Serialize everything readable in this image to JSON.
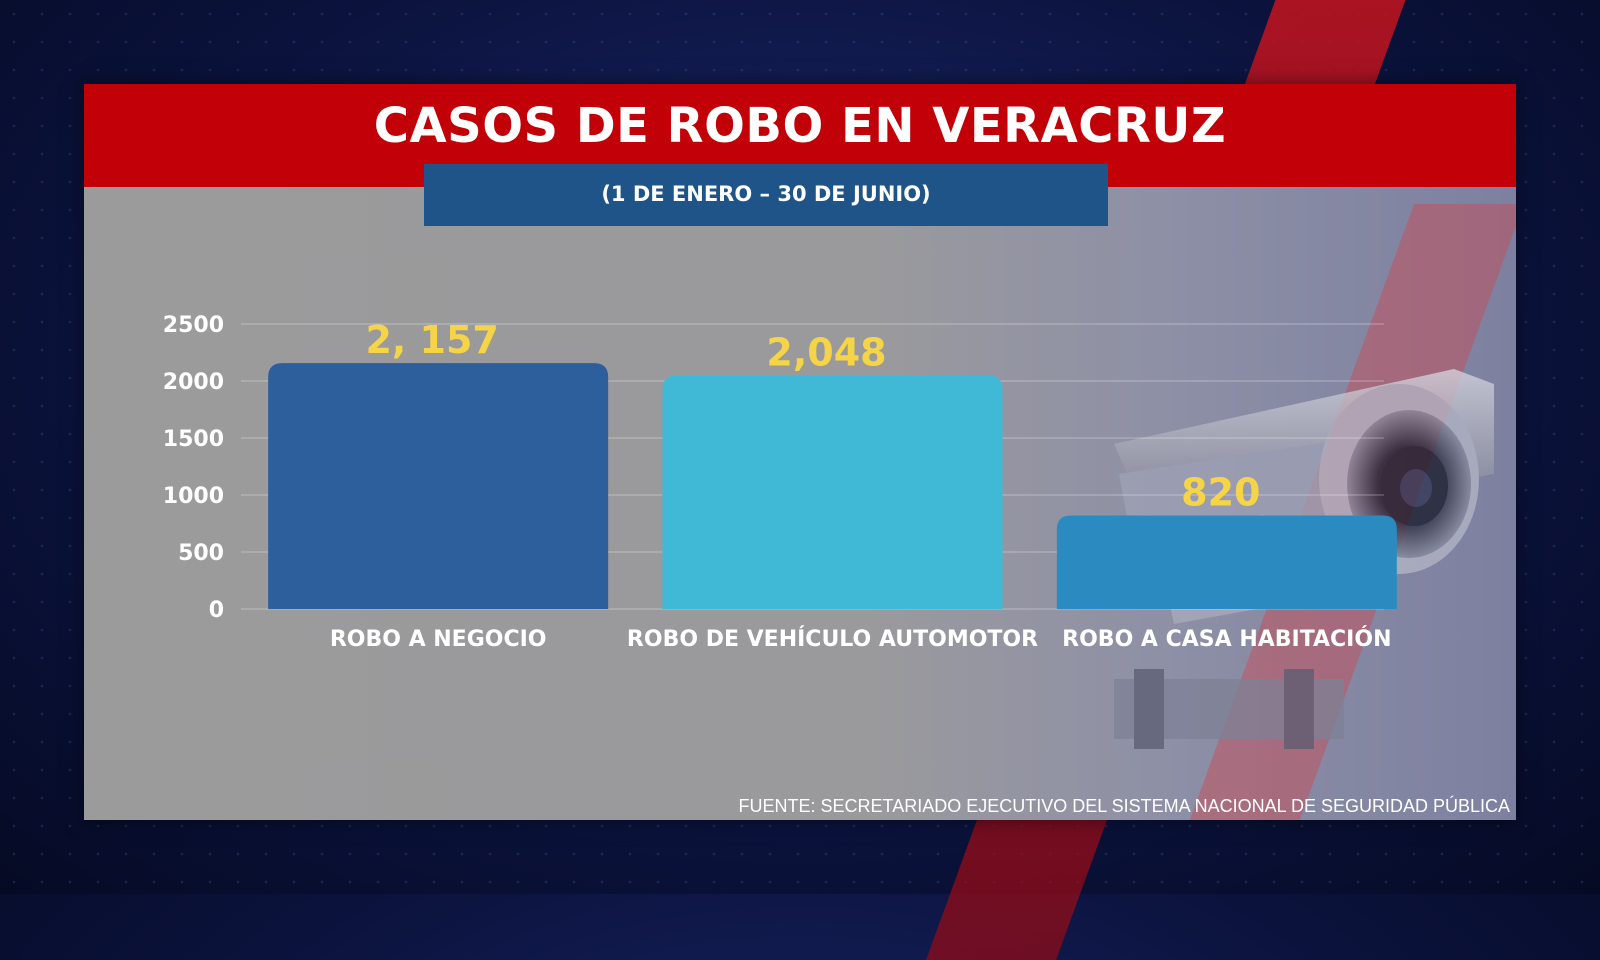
{
  "title": "CASOS DE ROBO EN VERACRUZ",
  "subtitle": "(1 DE ENERO – 30 DE JUNIO)",
  "source": "FUENTE: SECRETARIADO EJECUTIVO DEL SISTEMA NACIONAL DE SEGURIDAD PÚBLICA",
  "chart_data": {
    "type": "bar",
    "categories": [
      "ROBO A NEGOCIO",
      "ROBO DE VEHÍCULO AUTOMOTOR",
      "ROBO A CASA HABITACIÓN"
    ],
    "values": [
      2157,
      2048,
      820
    ],
    "data_labels": [
      "2, 157",
      "2,048",
      "820"
    ],
    "bar_colors": [
      "#2c5f9b",
      "#3fb9d6",
      "#2b8bc0"
    ],
    "label_color": "#f5d547",
    "ylim": [
      0,
      2500
    ],
    "yticks": [
      0,
      500,
      1000,
      1500,
      2000,
      2500
    ],
    "grid": true,
    "xlabel": "",
    "ylabel": ""
  }
}
